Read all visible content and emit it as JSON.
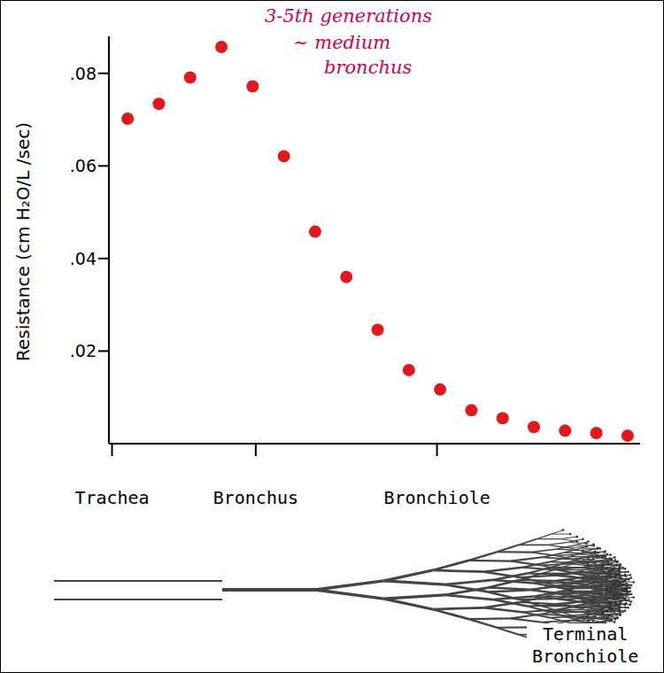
{
  "chart_data": {
    "type": "scatter",
    "y_label": "Resistance (cm H₂O/L /sec)",
    "x": [
      1,
      2,
      3,
      4,
      5,
      6,
      7,
      8,
      9,
      10,
      11,
      12,
      13,
      14,
      15,
      16,
      17
    ],
    "values": [
      0.0702,
      0.0734,
      0.0791,
      0.0857,
      0.0772,
      0.0621,
      0.0458,
      0.036,
      0.0246,
      0.0159,
      0.0117,
      0.0072,
      0.0055,
      0.0036,
      0.0028,
      0.0023,
      0.0017
    ],
    "color": "#e3181f",
    "marker": "circle",
    "xlim": [
      0.4,
      17.4
    ],
    "xticks": [
      {
        "value": 0.5,
        "label": "Trachea"
      },
      {
        "value": 5.1,
        "label": "Bronchus"
      },
      {
        "value": 10.9,
        "label": "Bronchiole"
      }
    ],
    "ylim": [
      0,
      0.088
    ],
    "yticks": [
      {
        "value": 0.02,
        "label": ".02"
      },
      {
        "value": 0.04,
        "label": ".04"
      },
      {
        "value": 0.06,
        "label": ".06"
      },
      {
        "value": 0.08,
        "label": ".08"
      }
    ],
    "grid": false,
    "annotations": [
      "3-5th generations",
      "~ medium",
      "bronchus"
    ]
  },
  "diagram": {
    "label": "Terminal Bronchiole"
  }
}
